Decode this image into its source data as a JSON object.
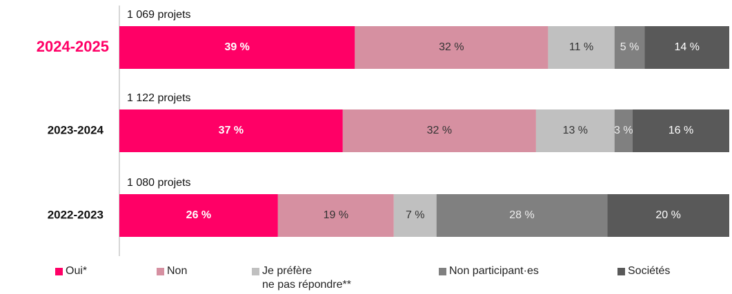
{
  "chart_data": {
    "type": "stacked-bar-percent",
    "orientation": "horizontal",
    "categories": [
      "2024-2025",
      "2023-2024",
      "2022-2023"
    ],
    "highlight_index": 0,
    "highlight_color": "#ff0066",
    "totals": [
      "1 069 projets",
      "1 122 projets",
      "1 080 projets"
    ],
    "series": [
      {
        "name": "Oui*",
        "color": "#ff0066",
        "label_color": "#ffffff",
        "label_bold": true,
        "values": [
          39,
          37,
          26
        ],
        "value_labels": [
          "39 %",
          "37 %",
          "26 %"
        ]
      },
      {
        "name": "Non",
        "color": "#d690a1",
        "label_color": "#333333",
        "values": [
          32,
          32,
          19
        ],
        "value_labels": [
          "32 %",
          "32 %",
          "19 %"
        ]
      },
      {
        "name": "Je préfère\nne pas répondre**",
        "color": "#c0c0c0",
        "label_color": "#333333",
        "values": [
          11,
          13,
          7
        ],
        "value_labels": [
          "11 %",
          "13 %",
          "7 %"
        ]
      },
      {
        "name": "Non participant·es",
        "color": "#808080",
        "label_color": "#eeeeee",
        "values": [
          5,
          3,
          28
        ],
        "value_labels": [
          "5 %",
          "3 %",
          "28 %"
        ]
      },
      {
        "name": "Sociétés",
        "color": "#595959",
        "label_color": "#ffffff",
        "values": [
          14,
          16,
          20
        ],
        "value_labels": [
          "14 %",
          "16 %",
          "20 %"
        ]
      }
    ]
  }
}
